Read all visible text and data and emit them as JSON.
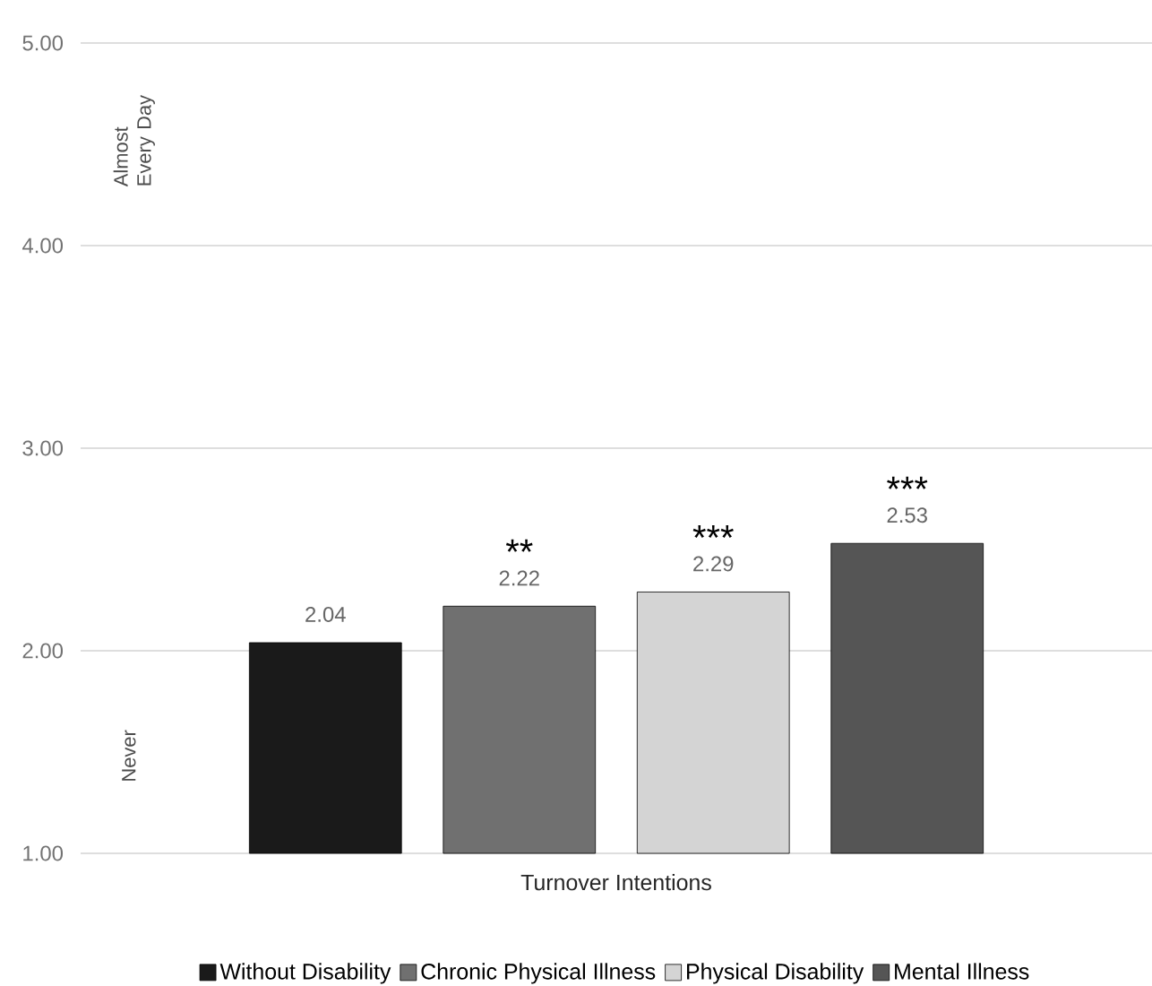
{
  "chart_data": {
    "type": "bar",
    "categories": [
      "Turnover Intentions"
    ],
    "series": [
      {
        "name": "Without Disability",
        "color": "#1a1a1a",
        "values": [
          2.04
        ]
      },
      {
        "name": "Chronic Physical Illness",
        "color": "#707070",
        "values": [
          2.22
        ]
      },
      {
        "name": "Physical Disability",
        "color": "#d4d4d4",
        "values": [
          2.29
        ]
      },
      {
        "name": "Mental Illness",
        "color": "#555555",
        "values": [
          2.53
        ]
      }
    ],
    "ylim": [
      1,
      5
    ],
    "yticks": [
      {
        "value": 1,
        "label": "1.00"
      },
      {
        "value": 2,
        "label": "2.00"
      },
      {
        "value": 3,
        "label": "3.00"
      },
      {
        "value": 4,
        "label": "4.00"
      },
      {
        "value": 5,
        "label": "5.00"
      }
    ],
    "grid": "y",
    "legend": "bottom",
    "data_labels": true,
    "annotations": [
      "**",
      "***",
      "***",
      "Almost Every Day",
      "Never"
    ]
  }
}
